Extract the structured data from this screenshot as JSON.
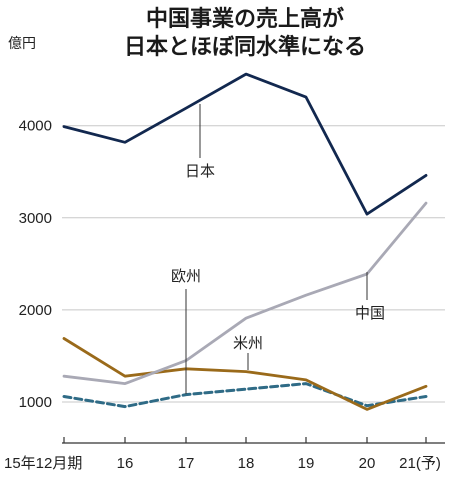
{
  "chart_data": {
    "type": "line",
    "title_line1": "中国事業の売上高が",
    "title_line2": "日本とほぼ同水準になる",
    "y_unit": "億円",
    "ylim": [
      550,
      4800
    ],
    "y_ticks": [
      1000,
      2000,
      3000,
      4000
    ],
    "categories": [
      "15年12月期",
      "16",
      "17",
      "18",
      "19",
      "20",
      "21(予)"
    ],
    "grid": "horizontal",
    "series": [
      {
        "name": "日本",
        "color": "#12284f",
        "dash": false,
        "values": [
          3990,
          3820,
          4190,
          4560,
          4310,
          3040,
          3460
        ]
      },
      {
        "name": "中国",
        "color": "#a9a9b5",
        "dash": false,
        "values": [
          1280,
          1200,
          1450,
          1910,
          2160,
          2390,
          3160
        ]
      },
      {
        "name": "米州",
        "color": "#9a6a1a",
        "dash": false,
        "values": [
          1690,
          1280,
          1360,
          1330,
          1240,
          920,
          1170
        ]
      },
      {
        "name": "欧州",
        "color": "#2f6b86",
        "dash": true,
        "values": [
          1060,
          950,
          1080,
          1140,
          1200,
          960,
          1060
        ]
      }
    ]
  }
}
